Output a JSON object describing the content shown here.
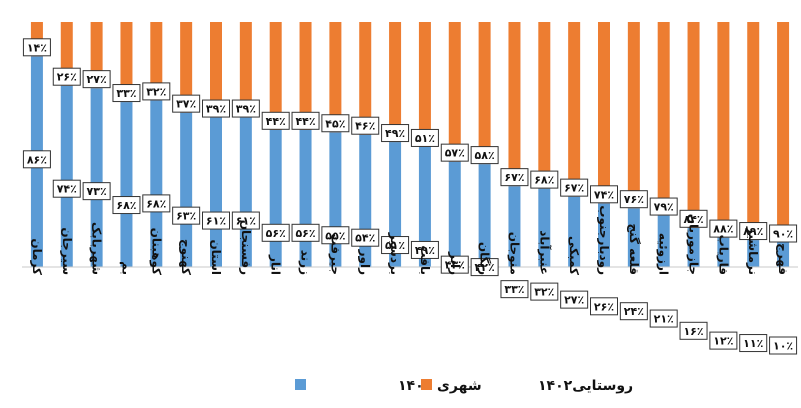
{
  "chart_data": {
    "type": "bar",
    "stacked": true,
    "percent": true,
    "categories": [
      "کرمان",
      "سیرجان",
      "شهربابک",
      "بم",
      "کوهبنان",
      "کهنوج",
      "استان",
      "رفسنجان",
      "انار",
      "زرند",
      "جیرفت",
      "راور",
      "بردسیر",
      "بافت",
      "رابر",
      "ریگان",
      "منوجان",
      "عنبرآباد",
      "کمبکی",
      "رودبارجنوب",
      "قلعه گنج",
      "ارزوئیه",
      "جازموریان",
      "فاریاب",
      "نرماشیر",
      "فهرج"
    ],
    "series": [
      {
        "name": "شهری ۱۴۰۲",
        "color": "#5b9bd5",
        "values": [
          86,
          74,
          73,
          68,
          68,
          63,
          61,
          61,
          56,
          56,
          55,
          54,
          51,
          49,
          43,
          42,
          33,
          32,
          27,
          26,
          24,
          21,
          16,
          12,
          11,
          10
        ],
        "labels": [
          "۸۶٪",
          "۷۴٪",
          "۷۳٪",
          "۶۸٪",
          "۶۸٪",
          "۶۳٪",
          "۶۱٪",
          "۶۱٪",
          "۵۶٪",
          "۵۶٪",
          "۵۵٪",
          "۵۴٪",
          "۵۱٪",
          "۴۹٪",
          "۴۳٪",
          "۴۲٪",
          "۳۳٪",
          "۳۲٪",
          "۲۷٪",
          "۲۶٪",
          "۲۴٪",
          "۲۱٪",
          "۱۶٪",
          "۱۲٪",
          "۱۱٪",
          "۱۰٪"
        ]
      },
      {
        "name": "روستایی۱۴۰۲",
        "color": "#ed7d31",
        "values": [
          14,
          26,
          27,
          33,
          32,
          37,
          39,
          39,
          44,
          44,
          45,
          46,
          49,
          51,
          57,
          58,
          67,
          68,
          67,
          74,
          76,
          79,
          84,
          88,
          89,
          90
        ],
        "labels": [
          "۱۴٪",
          "۲۶٪",
          "۲۷٪",
          "۳۳٪",
          "۳۲٪",
          "۳۷٪",
          "۳۹٪",
          "۳۹٪",
          "۴۴٪",
          "۴۴٪",
          "۴۵٪",
          "۴۶٪",
          "۴۹٪",
          "۵۱٪",
          "۵۷٪",
          "۵۸٪",
          "۶۷٪",
          "۶۸٪",
          "۶۷٪",
          "۷۴٪",
          "۷۶٪",
          "۷۹٪",
          "۸۴٪",
          "۸۸٪",
          "۸۹٪",
          "۹۰٪"
        ]
      }
    ],
    "ylim": [
      0,
      100
    ],
    "grid": false,
    "legend": "bottom"
  }
}
